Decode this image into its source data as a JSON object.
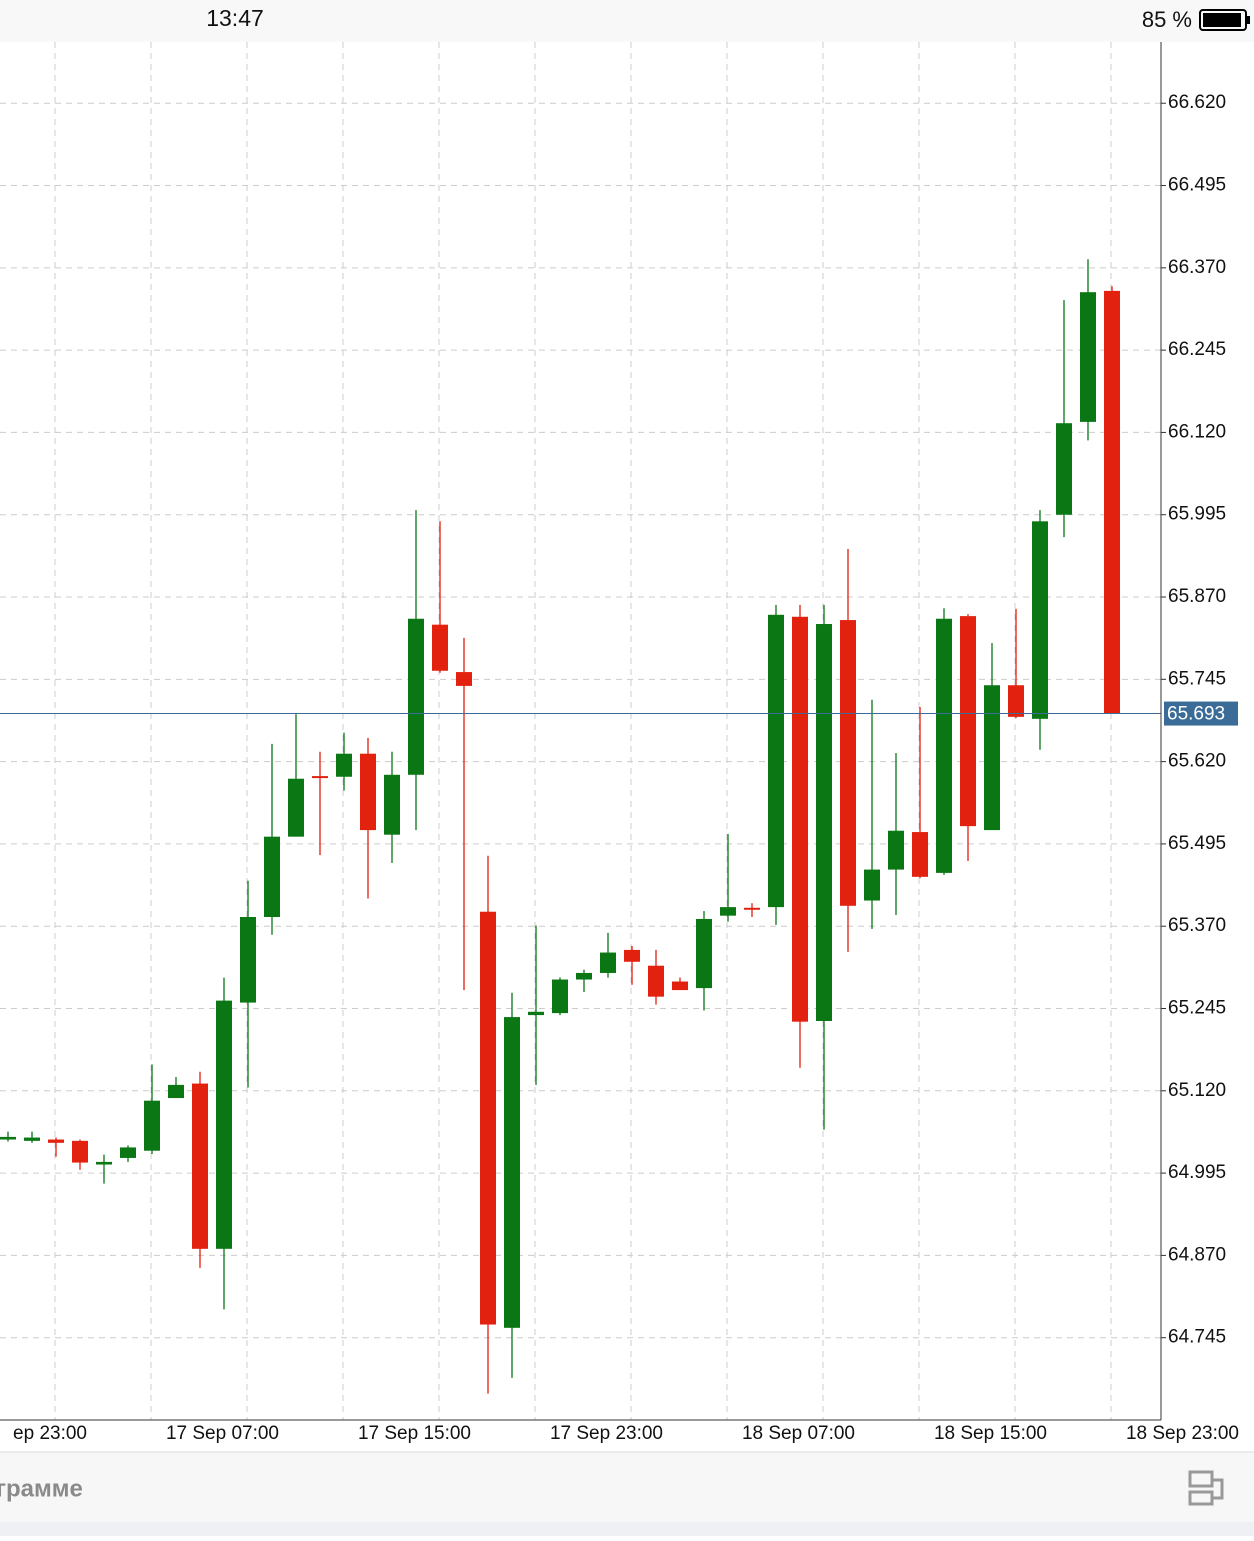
{
  "status_bar": {
    "time": "13:47",
    "battery": "85 %"
  },
  "chart_data": {
    "type": "candlestick",
    "up_color": "#0b7714",
    "down_color": "#e2210f",
    "grid": true,
    "ylim": [
      64.62,
      66.713
    ],
    "yticks": [
      64.745,
      {
        "value": 64.87,
        "label": "64.870"
      },
      64.995,
      {
        "value": 65.12,
        "label": "65.120"
      },
      65.245,
      {
        "value": 65.37,
        "label": "65.370"
      },
      65.495,
      {
        "value": 65.62,
        "label": "65.620"
      },
      65.745,
      {
        "value": 65.87,
        "label": "65.870"
      },
      65.995,
      {
        "value": 66.12,
        "label": "66.120"
      },
      66.245,
      {
        "value": 66.37,
        "label": "66.370"
      },
      66.495,
      {
        "value": 66.62,
        "label": "66.620"
      }
    ],
    "x_labels": [
      "ep 23:00",
      "17 Sep 07:00",
      "17 Sep 15:00",
      "17 Sep 23:00",
      "18 Sep 07:00",
      "18 Sep 15:00",
      "18 Sep 23:00"
    ],
    "last_price": 65.693,
    "last_price_color": "#3b6c98",
    "open": [
      65.046,
      65.044,
      65.046,
      65.044,
      65.008,
      65.018,
      65.029,
      65.109,
      65.131,
      64.88,
      65.254,
      65.384,
      65.506,
      65.598,
      65.597,
      65.632,
      65.509,
      65.6,
      65.828,
      65.756,
      65.392,
      64.76,
      65.235,
      65.238,
      65.289,
      65.299,
      65.334,
      65.31,
      65.286,
      65.276,
      65.386,
      65.398,
      65.399,
      65.84,
      65.226,
      65.835,
      65.409,
      65.456,
      65.513,
      65.451,
      65.841,
      65.516,
      65.736,
      65.685,
      65.995,
      66.136,
      66.335
    ],
    "high": [
      65.058,
      65.058,
      65.049,
      65.046,
      65.023,
      65.037,
      65.16,
      65.141,
      65.149,
      65.292,
      65.439,
      65.647,
      65.692,
      65.635,
      65.664,
      65.656,
      65.635,
      66.002,
      65.985,
      65.808,
      65.477,
      65.269,
      65.371,
      65.292,
      65.304,
      65.36,
      65.34,
      65.334,
      65.292,
      65.393,
      65.51,
      65.405,
      65.858,
      65.858,
      65.858,
      65.943,
      65.714,
      65.633,
      65.703,
      65.853,
      65.844,
      65.8,
      65.852,
      66.002,
      66.321,
      66.383,
      66.342
    ],
    "low": [
      65.043,
      65.041,
      65.02,
      65.0,
      64.979,
      65.012,
      65.024,
      65.109,
      64.851,
      64.788,
      65.125,
      65.357,
      65.506,
      65.478,
      65.576,
      65.412,
      65.466,
      65.516,
      65.755,
      65.273,
      64.66,
      64.684,
      65.129,
      65.235,
      65.27,
      65.292,
      65.281,
      65.251,
      65.273,
      65.242,
      65.377,
      65.384,
      65.372,
      65.155,
      65.061,
      65.331,
      65.366,
      65.387,
      65.443,
      65.448,
      65.469,
      65.516,
      65.686,
      65.638,
      65.961,
      66.108,
      65.693
    ],
    "close": [
      65.05,
      65.049,
      65.041,
      65.011,
      65.012,
      65.034,
      65.105,
      65.129,
      64.88,
      65.257,
      65.384,
      65.506,
      65.594,
      65.595,
      65.632,
      65.516,
      65.6,
      65.837,
      65.758,
      65.735,
      64.765,
      65.232,
      65.24,
      65.289,
      65.299,
      65.33,
      65.316,
      65.263,
      65.273,
      65.381,
      65.399,
      65.395,
      65.843,
      65.225,
      65.829,
      65.401,
      65.456,
      65.515,
      65.445,
      65.837,
      65.522,
      65.736,
      65.688,
      65.985,
      66.134,
      66.333,
      65.693
    ]
  },
  "toolbar": {
    "text": "грамме"
  }
}
